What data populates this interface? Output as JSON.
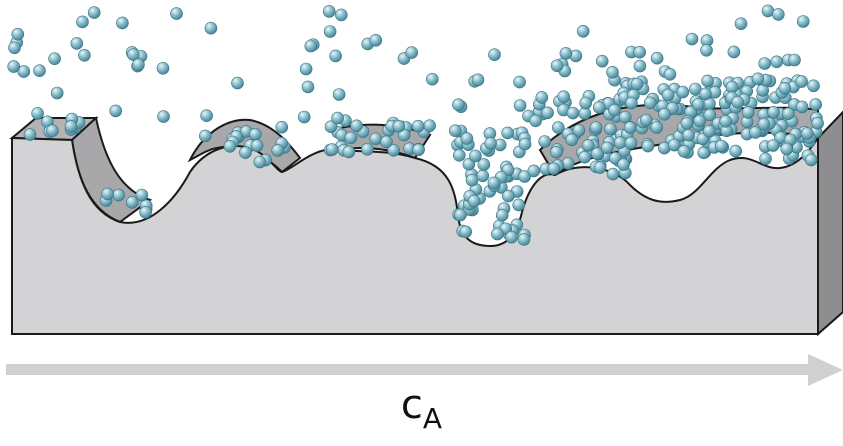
{
  "label": {
    "main": "c",
    "subscript": "A"
  },
  "colors": {
    "slab_front": "#d3d3d5",
    "slab_side": "#8e8e90",
    "slab_top": "#b4b4b6",
    "outline": "#1a1a1a",
    "particle": "#6fa9b8",
    "particle_highlight": "#e8f4f7",
    "arrow": "#d0d0d0"
  },
  "icons": {
    "arrow": "right-arrow-icon",
    "particle": "sphere-icon"
  }
}
